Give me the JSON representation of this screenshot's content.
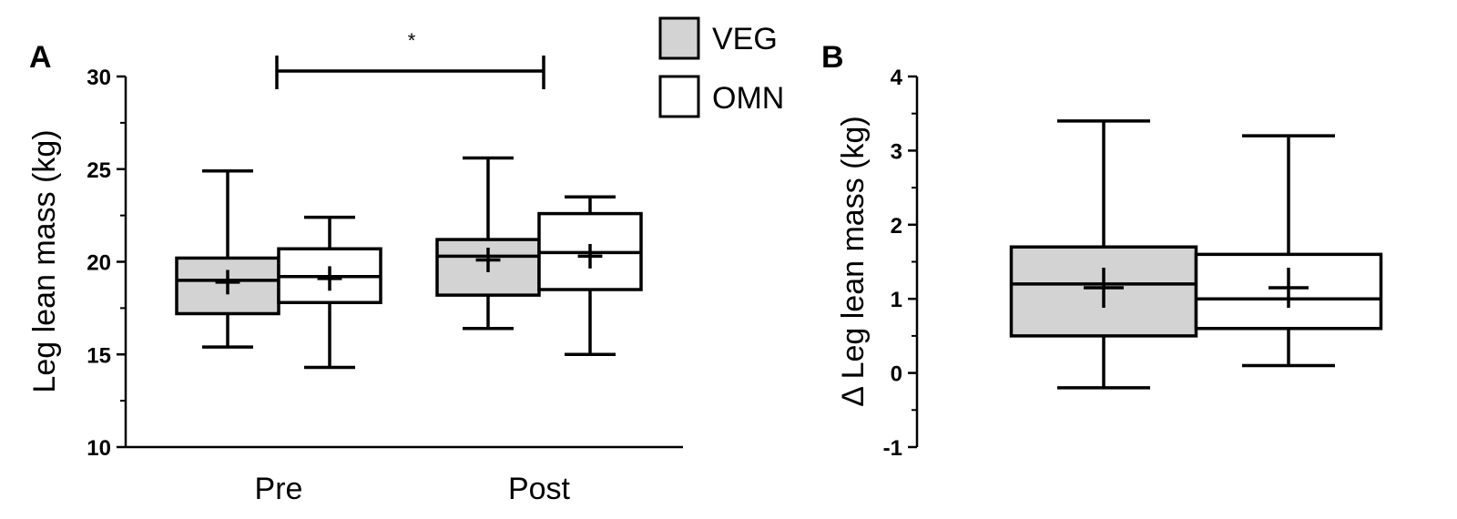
{
  "chart_data": [
    {
      "panel": "A",
      "type": "box",
      "ylabel": "Leg lean mass (kg)",
      "ylim": [
        10,
        30
      ],
      "yticks": [
        10,
        15,
        20,
        25,
        30
      ],
      "ytick_labels": [
        "10",
        "15",
        "20",
        "25",
        "30"
      ],
      "categories": [
        "Pre",
        "Post"
      ],
      "legend": [
        {
          "name": "VEG",
          "fill": "#d3d3d3"
        },
        {
          "name": "OMN",
          "fill": "#ffffff"
        }
      ],
      "series": [
        {
          "name": "VEG",
          "fill": "#d3d3d3",
          "boxes": [
            {
              "category": "Pre",
              "min": 15.4,
              "q1": 17.2,
              "median": 19.0,
              "q3": 20.2,
              "max": 24.9,
              "mean": 18.9
            },
            {
              "category": "Post",
              "min": 16.4,
              "q1": 18.2,
              "median": 20.3,
              "q3": 21.2,
              "max": 25.6,
              "mean": 20.1
            }
          ]
        },
        {
          "name": "OMN",
          "fill": "#ffffff",
          "boxes": [
            {
              "category": "Pre",
              "min": 14.3,
              "q1": 17.8,
              "median": 19.2,
              "q3": 20.7,
              "max": 22.4,
              "mean": 19.1
            },
            {
              "category": "Post",
              "min": 15.0,
              "q1": 18.5,
              "median": 20.5,
              "q3": 22.6,
              "max": 23.5,
              "mean": 20.3
            }
          ]
        }
      ],
      "annotation": {
        "text": "*",
        "from": "Pre",
        "to": "Post"
      }
    },
    {
      "panel": "B",
      "type": "box",
      "ylabel": "Δ Leg lean mass (kg)",
      "ylim": [
        -1,
        4
      ],
      "yticks": [
        -1,
        0,
        1,
        2,
        3,
        4
      ],
      "ytick_labels": [
        "-1",
        "0",
        "1",
        "2",
        "3",
        "4"
      ],
      "series": [
        {
          "name": "VEG",
          "fill": "#d3d3d3",
          "boxes": [
            {
              "min": -0.2,
              "q1": 0.5,
              "median": 1.2,
              "q3": 1.7,
              "max": 3.4,
              "mean": 1.15
            }
          ]
        },
        {
          "name": "OMN",
          "fill": "#ffffff",
          "boxes": [
            {
              "min": 0.1,
              "q1": 0.6,
              "median": 1.0,
              "q3": 1.6,
              "max": 3.2,
              "mean": 1.15
            }
          ]
        }
      ]
    }
  ]
}
